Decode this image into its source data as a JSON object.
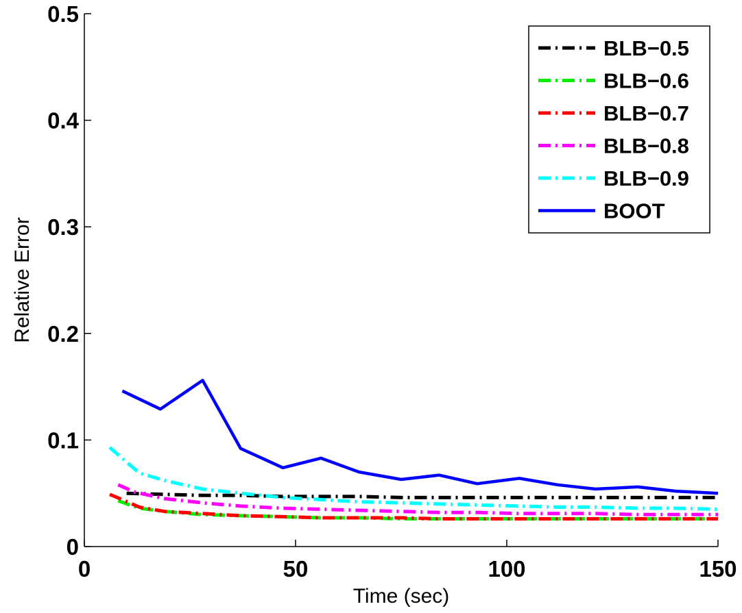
{
  "chart_data": {
    "type": "line",
    "xlabel": "Time (sec)",
    "ylabel": "Relative Error",
    "xlim": [
      0,
      150
    ],
    "ylim": [
      0,
      0.5
    ],
    "x_ticks": [
      "0",
      "50",
      "100",
      "150"
    ],
    "y_ticks": [
      "0",
      "0.1",
      "0.2",
      "0.3",
      "0.4",
      "0.5"
    ],
    "grid": false,
    "legend_position": "top-right",
    "series": [
      {
        "name": "BLB−0.5",
        "color": "#000000",
        "style": "dash-dot",
        "x": [
          10,
          19,
          28,
          37,
          47,
          56,
          65,
          75,
          84,
          93,
          103,
          112,
          121,
          131,
          140,
          150
        ],
        "y": [
          0.05,
          0.049,
          0.048,
          0.048,
          0.047,
          0.047,
          0.047,
          0.046,
          0.046,
          0.046,
          0.046,
          0.046,
          0.046,
          0.046,
          0.046,
          0.046
        ]
      },
      {
        "name": "BLB−0.6",
        "color": "#00ee00",
        "style": "dash-dot",
        "x": [
          8,
          13,
          19,
          28,
          37,
          47,
          56,
          65,
          75,
          84,
          93,
          103,
          112,
          121,
          131,
          140,
          150
        ],
        "y": [
          0.043,
          0.036,
          0.033,
          0.03,
          0.029,
          0.028,
          0.027,
          0.027,
          0.026,
          0.026,
          0.026,
          0.026,
          0.026,
          0.026,
          0.026,
          0.026,
          0.026
        ]
      },
      {
        "name": "BLB−0.7",
        "color": "#ff0000",
        "style": "dash-dot",
        "x": [
          6,
          9,
          13,
          19,
          28,
          37,
          47,
          56,
          65,
          75,
          84,
          93,
          103,
          112,
          121,
          131,
          140,
          150
        ],
        "y": [
          0.049,
          0.044,
          0.037,
          0.033,
          0.031,
          0.029,
          0.028,
          0.027,
          0.027,
          0.027,
          0.026,
          0.026,
          0.026,
          0.026,
          0.026,
          0.026,
          0.026,
          0.026
        ]
      },
      {
        "name": "BLB−0.8",
        "color": "#ff00ff",
        "style": "dash-dot",
        "x": [
          8,
          12,
          19,
          28,
          37,
          47,
          56,
          65,
          75,
          84,
          93,
          103,
          112,
          121,
          131,
          140,
          150
        ],
        "y": [
          0.058,
          0.051,
          0.045,
          0.041,
          0.038,
          0.036,
          0.035,
          0.034,
          0.033,
          0.032,
          0.032,
          0.031,
          0.031,
          0.031,
          0.03,
          0.03,
          0.03
        ]
      },
      {
        "name": "BLB−0.9",
        "color": "#00ffff",
        "style": "dash-dot",
        "x": [
          6,
          13,
          19,
          28,
          37,
          47,
          56,
          65,
          75,
          84,
          93,
          103,
          112,
          121,
          131,
          140,
          150
        ],
        "y": [
          0.093,
          0.069,
          0.062,
          0.054,
          0.05,
          0.046,
          0.044,
          0.042,
          0.041,
          0.04,
          0.039,
          0.038,
          0.037,
          0.037,
          0.036,
          0.036,
          0.035
        ]
      },
      {
        "name": "BOOT",
        "color": "#0000ff",
        "style": "solid",
        "x": [
          9,
          18,
          28,
          37,
          47,
          56,
          65,
          75,
          84,
          93,
          103,
          112,
          121,
          131,
          140,
          150
        ],
        "y": [
          0.146,
          0.129,
          0.156,
          0.092,
          0.074,
          0.083,
          0.07,
          0.063,
          0.067,
          0.059,
          0.064,
          0.058,
          0.054,
          0.056,
          0.052,
          0.05
        ]
      }
    ]
  }
}
